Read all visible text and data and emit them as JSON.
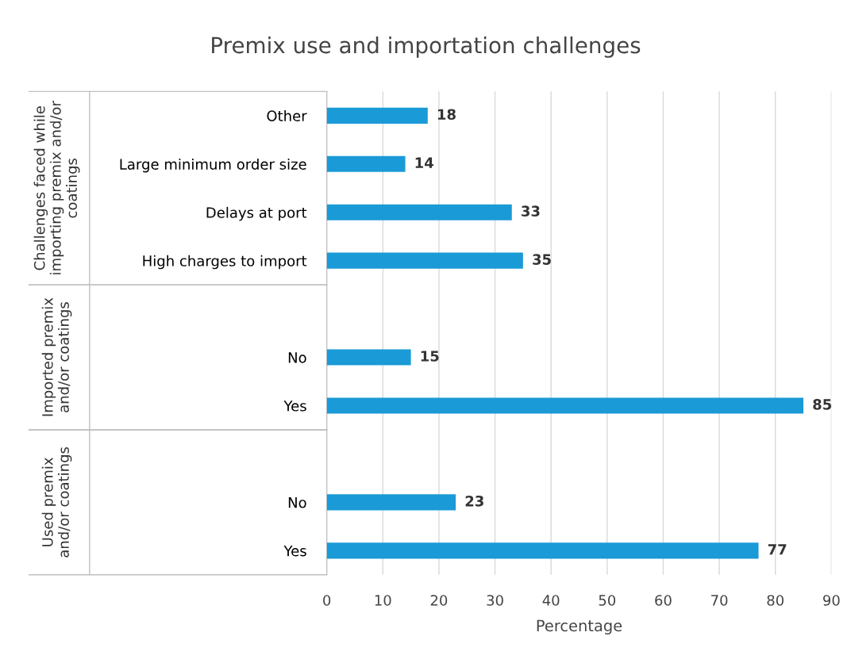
{
  "chart_data": {
    "type": "bar",
    "orientation": "horizontal",
    "title": "Premix use and importation challenges",
    "xlabel": "Percentage",
    "categories": [
      "Other",
      "Large minimum order size",
      "Delays at port",
      "High charges to import",
      null,
      "No",
      "Yes",
      null,
      "No",
      "Yes"
    ],
    "values": [
      18,
      14,
      33,
      35,
      null,
      15,
      85,
      null,
      23,
      77
    ],
    "color": "#1a9ad6",
    "xlim": [
      0,
      90
    ],
    "xticks": [
      0,
      10,
      20,
      30,
      40,
      50,
      60,
      70,
      80,
      90
    ],
    "grid": "x",
    "data_labels": true,
    "annotations": [
      "Challenges faced while\nimporting premix and/or\ncoatings",
      "Imported premix\nand/or coatings",
      "Used premix\nand/or coatings"
    ]
  }
}
